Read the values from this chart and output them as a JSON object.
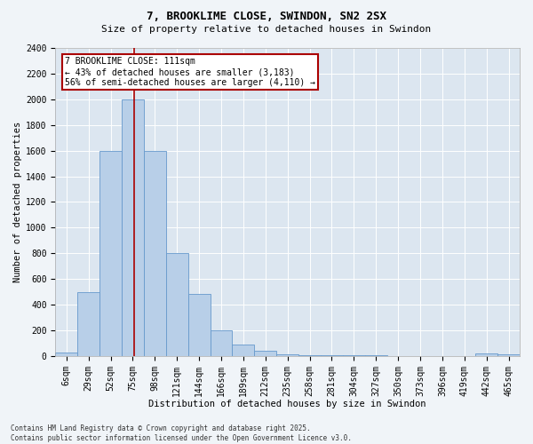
{
  "title": "7, BROOKLIME CLOSE, SWINDON, SN2 2SX",
  "subtitle": "Size of property relative to detached houses in Swindon",
  "xlabel": "Distribution of detached houses by size in Swindon",
  "ylabel": "Number of detached properties",
  "categories": [
    "6sqm",
    "29sqm",
    "52sqm",
    "75sqm",
    "98sqm",
    "121sqm",
    "144sqm",
    "166sqm",
    "189sqm",
    "212sqm",
    "235sqm",
    "258sqm",
    "281sqm",
    "304sqm",
    "327sqm",
    "350sqm",
    "373sqm",
    "396sqm",
    "419sqm",
    "442sqm",
    "465sqm"
  ],
  "values": [
    25,
    500,
    1600,
    2000,
    1600,
    800,
    480,
    200,
    90,
    40,
    10,
    5,
    5,
    5,
    5,
    0,
    0,
    0,
    0,
    20,
    10
  ],
  "bar_color": "#b8cfe8",
  "bar_edge_color": "#6699cc",
  "vline_color": "#aa0000",
  "vline_x": 3.55,
  "annotation_text": "7 BROOKLIME CLOSE: 111sqm\n← 43% of detached houses are smaller (3,183)\n56% of semi-detached houses are larger (4,110) →",
  "annotation_box_facecolor": "#ffffff",
  "annotation_box_edgecolor": "#aa0000",
  "ylim": [
    0,
    2400
  ],
  "yticks": [
    0,
    200,
    400,
    600,
    800,
    1000,
    1200,
    1400,
    1600,
    1800,
    2000,
    2200,
    2400
  ],
  "axes_bg_color": "#dce6f0",
  "fig_bg_color": "#f0f4f8",
  "grid_color": "#ffffff",
  "footer": "Contains HM Land Registry data © Crown copyright and database right 2025.\nContains public sector information licensed under the Open Government Licence v3.0.",
  "title_fontsize": 9,
  "subtitle_fontsize": 8,
  "tick_fontsize": 7,
  "label_fontsize": 7.5,
  "footer_fontsize": 5.5
}
